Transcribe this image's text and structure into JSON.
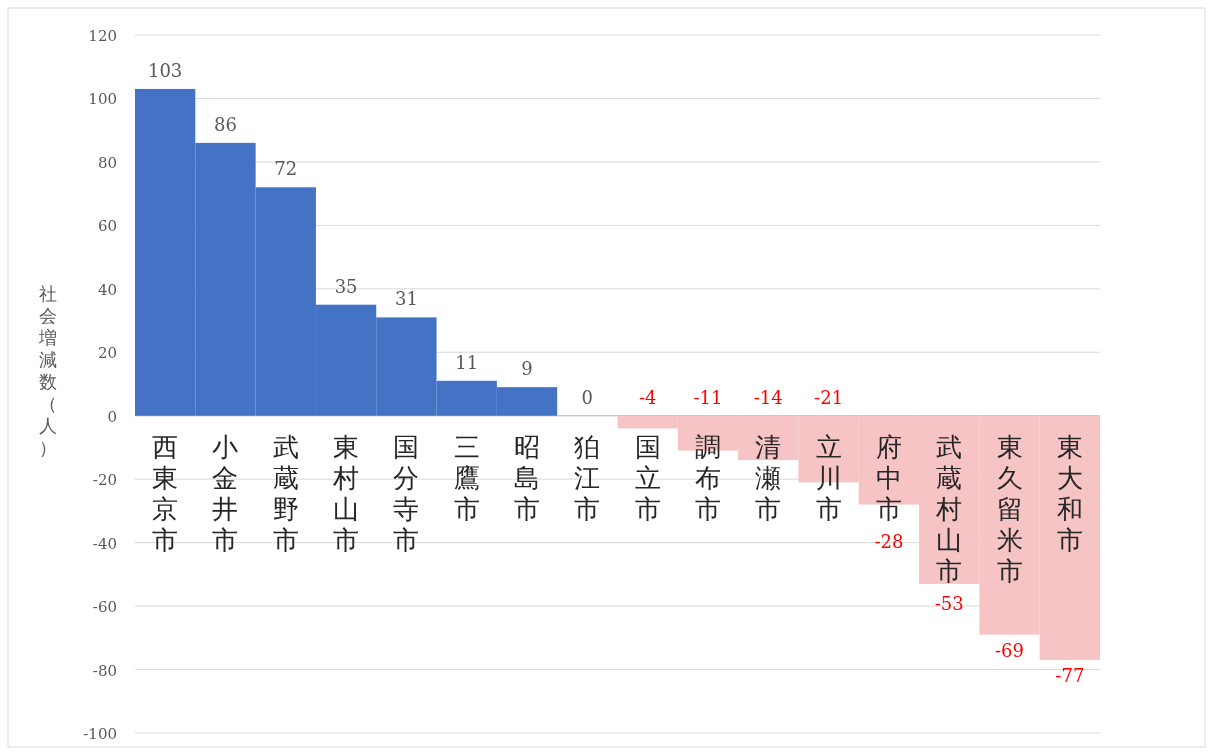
{
  "chart_data": {
    "type": "bar",
    "ylabel": "社会増減数（人）",
    "categories": [
      "西東京市",
      "小金井市",
      "武蔵野市",
      "東村山市",
      "国分寺市",
      "三鷹市",
      "昭島市",
      "狛江市",
      "国立市",
      "調布市",
      "清瀬市",
      "立川市",
      "府中市",
      "武蔵村山市",
      "東久留米市",
      "東大和市"
    ],
    "values": [
      103,
      86,
      72,
      35,
      31,
      11,
      9,
      0,
      -4,
      -11,
      -14,
      -21,
      -28,
      -53,
      -69,
      -77
    ],
    "colors": [
      "#4472c4",
      "#4472c4",
      "#4472c4",
      "#4472c4",
      "#4472c4",
      "#4472c4",
      "#4472c4",
      "#4472c4",
      "#f6c4c4",
      "#f6c4c4",
      "#f6c4c4",
      "#f6c4c4",
      "#f6c4c4",
      "#f6c4c4",
      "#f6c4c4",
      "#f6c4c4"
    ],
    "ylim": [
      -100,
      120
    ],
    "yticks": [
      -100,
      -80,
      -60,
      -40,
      -20,
      0,
      20,
      40,
      60,
      80,
      100,
      120
    ],
    "grid": "y",
    "data_labels": true
  }
}
